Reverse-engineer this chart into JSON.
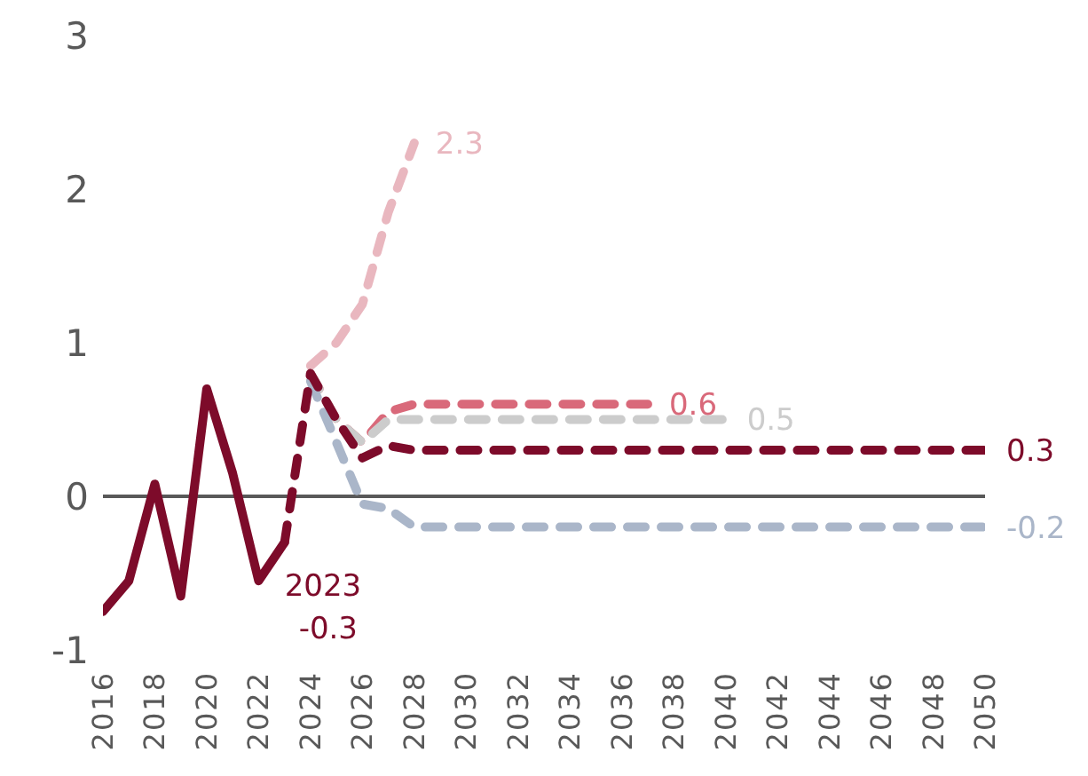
{
  "chart_data": {
    "type": "line",
    "xlim": [
      2016,
      2050
    ],
    "xticks": [
      2016,
      2018,
      2020,
      2022,
      2024,
      2026,
      2028,
      2030,
      2032,
      2034,
      2036,
      2038,
      2040,
      2042,
      2044,
      2046,
      2048,
      2050
    ],
    "ylim": [
      -1,
      3
    ],
    "yticks": [
      -1,
      0,
      1,
      2,
      3
    ],
    "marker": "none",
    "ref_lines": [
      {
        "axis": "y",
        "value": 0,
        "color": "#595959"
      }
    ],
    "annotations": [
      {
        "text": "2023\n-0.3",
        "x": 2023,
        "y": -0.3
      }
    ],
    "series": [
      {
        "color": "#7d0b2a",
        "line_style": "solid",
        "x": [
          2016,
          2017,
          2018,
          2019,
          2020,
          2021,
          2022,
          2023
        ],
        "values": [
          -0.75,
          -0.55,
          0.08,
          -0.65,
          0.7,
          0.15,
          -0.55,
          -0.3
        ]
      },
      {
        "color": "#e9b7bf",
        "line_style": "dashed",
        "x": [
          2024,
          2025,
          2026,
          2027,
          2028
        ],
        "values": [
          0.85,
          1.0,
          1.25,
          1.85,
          2.3
        ],
        "value_labels": [
          null,
          null,
          null,
          null,
          "2.3"
        ]
      },
      {
        "color": "#d9697a",
        "line_style": "dashed",
        "x": [
          2024,
          2025,
          2026,
          2027,
          2028,
          2037
        ],
        "values": [
          0.8,
          0.5,
          0.35,
          0.55,
          0.6,
          0.6
        ],
        "value_labels": [
          null,
          null,
          null,
          null,
          null,
          "0.6"
        ]
      },
      {
        "color": "#cccccc",
        "line_style": "dashed",
        "x": [
          2024,
          2025,
          2026,
          2027,
          2028,
          2040
        ],
        "values": [
          0.8,
          0.5,
          0.35,
          0.5,
          0.5,
          0.5
        ],
        "value_labels": [
          null,
          null,
          null,
          null,
          null,
          "0.5"
        ]
      },
      {
        "color": "#aab6c9",
        "line_style": "dashed",
        "x": [
          2024,
          2025,
          2026,
          2027,
          2028,
          2050
        ],
        "values": [
          0.75,
          0.35,
          -0.05,
          -0.08,
          -0.2,
          -0.2
        ],
        "value_labels": [
          null,
          null,
          null,
          null,
          null,
          "-0.2"
        ]
      },
      {
        "color": "#7d0b2a",
        "line_style": "dashed",
        "x": [
          2023,
          2024,
          2025,
          2026,
          2027,
          2028,
          2050
        ],
        "values": [
          -0.3,
          0.8,
          0.5,
          0.25,
          0.33,
          0.3,
          0.3
        ],
        "value_labels": [
          null,
          null,
          null,
          null,
          null,
          null,
          "0.3"
        ]
      }
    ]
  }
}
